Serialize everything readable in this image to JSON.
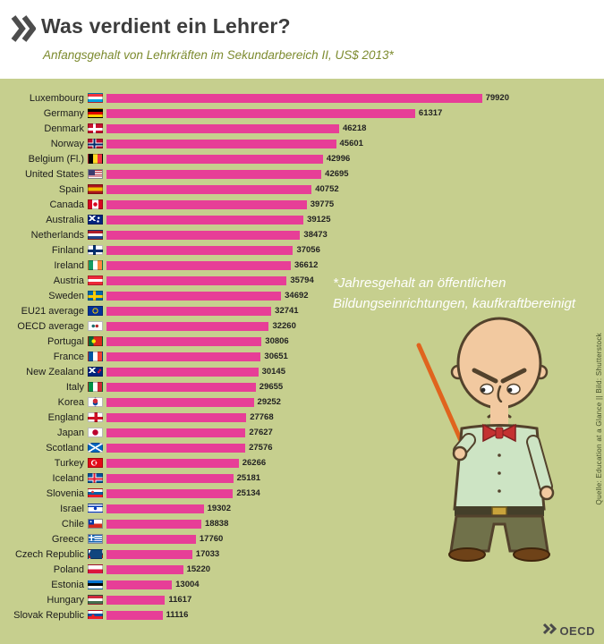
{
  "header": {
    "title": "Was verdient ein Lehrer?",
    "subtitle": "Anfangsgehalt von Lehrkräften im Sekundarbereich II, US$ 2013*"
  },
  "annotation": {
    "text": "*Jahresgehalt an öffentlichen Bildungseinrichtungen, kaufkraftbereinigt"
  },
  "source": {
    "text": "Quelle: Education at a Glance || Bild: Shutterstock"
  },
  "footer": {
    "logo_text": "OECD"
  },
  "colors": {
    "background": "#c6cf8e",
    "bar": "#e73e97",
    "title_text": "#3d3d3d",
    "subtitle_text": "#7d8b2f",
    "annotation_text": "#ffffff"
  },
  "chart_data": {
    "type": "bar",
    "orientation": "horizontal",
    "title": "Was verdient ein Lehrer?",
    "subtitle": "Anfangsgehalt von Lehrkräften im Sekundarbereich II, US$ 2013*",
    "value_unit": "US$ (kaufkraftbereinigt, 2013)",
    "xlim": [
      0,
      80000
    ],
    "grid": false,
    "legend": false,
    "rows": [
      {
        "label": "Luxembourg",
        "value": 79920,
        "flag": "lux"
      },
      {
        "label": "Germany",
        "value": 61317,
        "flag": "deu"
      },
      {
        "label": "Denmark",
        "value": 46218,
        "flag": "dnk"
      },
      {
        "label": "Norway",
        "value": 45601,
        "flag": "nor"
      },
      {
        "label": "Belgium (Fl.)",
        "value": 42996,
        "flag": "bel"
      },
      {
        "label": "United States",
        "value": 42695,
        "flag": "usa"
      },
      {
        "label": "Spain",
        "value": 40752,
        "flag": "esp"
      },
      {
        "label": "Canada",
        "value": 39775,
        "flag": "can"
      },
      {
        "label": "Australia",
        "value": 39125,
        "flag": "aus"
      },
      {
        "label": "Netherlands",
        "value": 38473,
        "flag": "nld"
      },
      {
        "label": "Finland",
        "value": 37056,
        "flag": "fin"
      },
      {
        "label": "Ireland",
        "value": 36612,
        "flag": "irl"
      },
      {
        "label": "Austria",
        "value": 35794,
        "flag": "aut"
      },
      {
        "label": "Sweden",
        "value": 34692,
        "flag": "swe"
      },
      {
        "label": "EU21 average",
        "value": 32741,
        "flag": "eu"
      },
      {
        "label": "OECD average",
        "value": 32260,
        "flag": "oecd"
      },
      {
        "label": "Portugal",
        "value": 30806,
        "flag": "prt"
      },
      {
        "label": "France",
        "value": 30651,
        "flag": "fra"
      },
      {
        "label": "New Zealand",
        "value": 30145,
        "flag": "nzl"
      },
      {
        "label": "Italy",
        "value": 29655,
        "flag": "ita"
      },
      {
        "label": "Korea",
        "value": 29252,
        "flag": "kor"
      },
      {
        "label": "England",
        "value": 27768,
        "flag": "eng"
      },
      {
        "label": "Japan",
        "value": 27627,
        "flag": "jpn"
      },
      {
        "label": "Scotland",
        "value": 27576,
        "flag": "sco"
      },
      {
        "label": "Turkey",
        "value": 26266,
        "flag": "tur"
      },
      {
        "label": "Iceland",
        "value": 25181,
        "flag": "isl"
      },
      {
        "label": "Slovenia",
        "value": 25134,
        "flag": "svn"
      },
      {
        "label": "Israel",
        "value": 19302,
        "flag": "isr"
      },
      {
        "label": "Chile",
        "value": 18838,
        "flag": "chl"
      },
      {
        "label": "Greece",
        "value": 17760,
        "flag": "grc"
      },
      {
        "label": "Czech Republic",
        "value": 17033,
        "flag": "cze"
      },
      {
        "label": "Poland",
        "value": 15220,
        "flag": "pol"
      },
      {
        "label": "Estonia",
        "value": 13004,
        "flag": "est"
      },
      {
        "label": "Hungary",
        "value": 11617,
        "flag": "hun"
      },
      {
        "label": "Slovak Republic",
        "value": 11116,
        "flag": "svk"
      }
    ]
  }
}
